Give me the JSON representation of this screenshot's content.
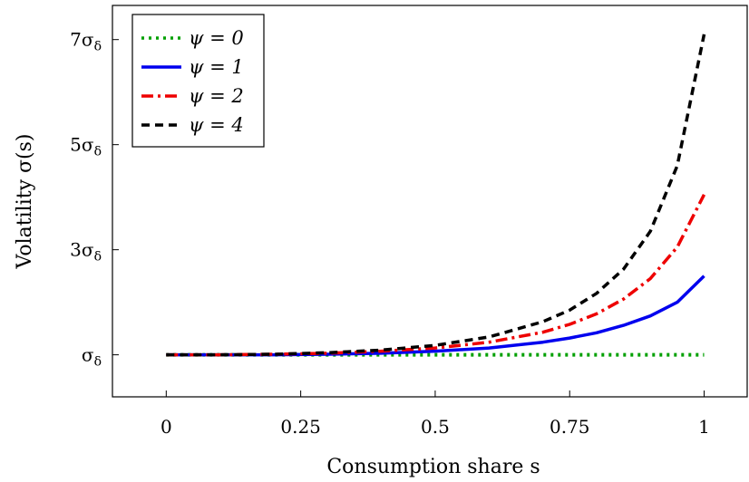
{
  "chart_data": {
    "type": "line",
    "title": "",
    "xlabel": "Consumption share s",
    "ylabel": "Volatility σ(s)",
    "xlim": [
      -0.1,
      1.08
    ],
    "ylim": [
      0.2,
      7.65
    ],
    "x_ticks": [
      {
        "value": 0,
        "label": "0"
      },
      {
        "value": 0.25,
        "label": "0.25"
      },
      {
        "value": 0.5,
        "label": "0.5"
      },
      {
        "value": 0.75,
        "label": "0.75"
      },
      {
        "value": 1,
        "label": "1"
      }
    ],
    "y_ticks": [
      {
        "value": 1,
        "label": "σδ"
      },
      {
        "value": 3,
        "label": "3σδ"
      },
      {
        "value": 5,
        "label": "5σδ"
      },
      {
        "value": 7,
        "label": "7σδ"
      }
    ],
    "grid": false,
    "legend_position": "top-left",
    "x": [
      0,
      0.1,
      0.2,
      0.3,
      0.4,
      0.5,
      0.6,
      0.7,
      0.75,
      0.8,
      0.85,
      0.9,
      0.95,
      1.0
    ],
    "series": [
      {
        "name": "ψ = 0",
        "color": "#00a000",
        "dash": "dotted",
        "values": [
          1,
          1,
          1,
          1,
          1,
          1,
          1,
          1,
          1,
          1,
          1,
          1,
          1,
          1
        ]
      },
      {
        "name": "ψ = 1",
        "color": "#0000ee",
        "dash": "solid",
        "values": [
          1.0,
          1.0,
          1.0,
          1.01,
          1.03,
          1.07,
          1.13,
          1.24,
          1.32,
          1.42,
          1.56,
          1.74,
          2.0,
          2.5
        ]
      },
      {
        "name": "ψ = 2",
        "color": "#ee0000",
        "dash": "dashdot",
        "values": [
          1.0,
          1.0,
          1.01,
          1.03,
          1.07,
          1.13,
          1.24,
          1.43,
          1.58,
          1.78,
          2.06,
          2.45,
          3.05,
          4.05
        ]
      },
      {
        "name": "ψ = 4",
        "color": "#000000",
        "dash": "dashed",
        "values": [
          1.0,
          1.0,
          1.01,
          1.04,
          1.09,
          1.18,
          1.34,
          1.63,
          1.85,
          2.17,
          2.63,
          3.35,
          4.6,
          7.1
        ]
      }
    ]
  }
}
